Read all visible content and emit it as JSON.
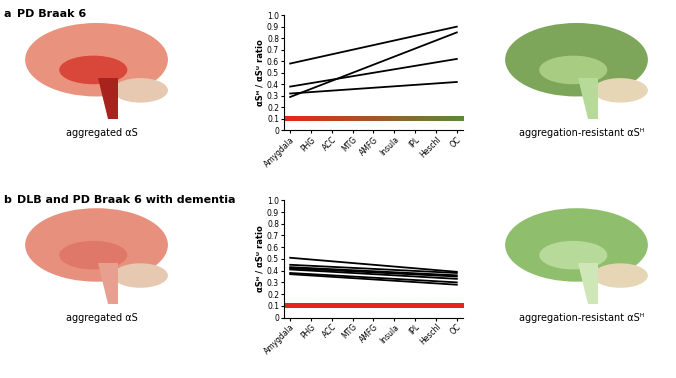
{
  "chart_data": [
    {
      "type": "line",
      "panel": "a",
      "title": "PD Braak 6",
      "brain_captions": [
        "aggregated αS",
        "aggregation-resistant αSᴴ"
      ],
      "ylabel": "αSᴴ / αSᵁ ratio",
      "categories": [
        "Amygdala",
        "PHG",
        "ACC",
        "MTG",
        "AMFG",
        "Insula",
        "IPL",
        "Heschl",
        "OC"
      ],
      "series": [
        {
          "color": "#000000",
          "x": [
            "Amygdala",
            "OC"
          ],
          "values": [
            0.58,
            0.9
          ]
        },
        {
          "color": "#000000",
          "x": [
            "Amygdala",
            "OC"
          ],
          "values": [
            0.29,
            0.85
          ]
        },
        {
          "color": "#000000",
          "x": [
            "Amygdala",
            "OC"
          ],
          "values": [
            0.38,
            0.62
          ]
        },
        {
          "color": "#000000",
          "x": [
            "Amygdala",
            "OC"
          ],
          "values": [
            0.32,
            0.42
          ]
        }
      ],
      "band": {
        "values": [
          0.08,
          0.12
        ],
        "colors": [
          "#e8241c",
          "#5a8a3a"
        ]
      },
      "ylim": [
        0,
        1.0
      ],
      "yticks": [
        0,
        0.1,
        0.2,
        0.3,
        0.4,
        0.5,
        0.6,
        0.7,
        0.8,
        0.9,
        1.0
      ],
      "grid": false
    },
    {
      "type": "line",
      "panel": "b",
      "title": "DLB and PD Braak 6 with dementia",
      "brain_captions": [
        "aggregated αS",
        "aggregation-resistant αSᴴ"
      ],
      "ylabel": "αSᴴ / αSᵁ ratio",
      "categories": [
        "Amygdala",
        "PHG",
        "ACC",
        "MTG",
        "AMFG",
        "Insula",
        "IPL",
        "Heschl",
        "OC"
      ],
      "series": [
        {
          "color": "#000000",
          "x": [
            "Amygdala",
            "OC"
          ],
          "values": [
            0.51,
            0.39
          ]
        },
        {
          "color": "#000000",
          "x": [
            "Amygdala",
            "OC"
          ],
          "values": [
            0.45,
            0.38
          ]
        },
        {
          "color": "#000000",
          "x": [
            "Amygdala",
            "OC"
          ],
          "values": [
            0.43,
            0.36
          ]
        },
        {
          "color": "#000000",
          "x": [
            "Amygdala",
            "OC"
          ],
          "values": [
            0.42,
            0.35
          ]
        },
        {
          "color": "#000000",
          "x": [
            "Amygdala",
            "OC"
          ],
          "values": [
            0.41,
            0.33
          ]
        },
        {
          "color": "#000000",
          "x": [
            "Amygdala",
            "OC"
          ],
          "values": [
            0.38,
            0.3
          ]
        },
        {
          "color": "#000000",
          "x": [
            "Amygdala",
            "OC"
          ],
          "values": [
            0.37,
            0.28
          ]
        }
      ],
      "band": {
        "values": [
          0.08,
          0.12
        ],
        "colors": [
          "#e8241c"
        ]
      },
      "ylim": [
        0,
        1.0
      ],
      "yticks": [
        0,
        0.1,
        0.2,
        0.3,
        0.4,
        0.5,
        0.6,
        0.7,
        0.8,
        0.9,
        1.0
      ],
      "grid": false
    }
  ]
}
